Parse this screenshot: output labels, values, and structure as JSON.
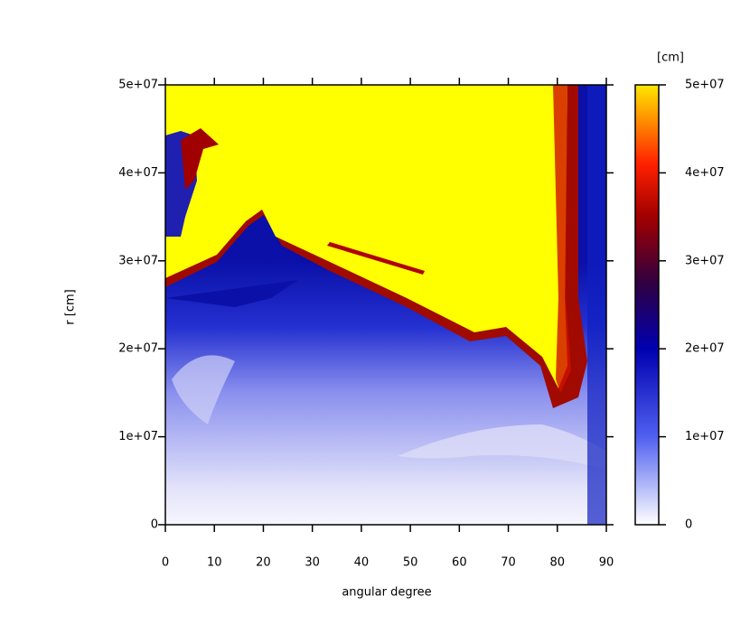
{
  "chart_data": {
    "type": "heatmap",
    "xlabel": "angular degree",
    "ylabel": "r [cm]",
    "xlim": [
      0,
      90
    ],
    "ylim": [
      0,
      50000000
    ],
    "xticks": [
      0,
      10,
      20,
      30,
      40,
      50,
      60,
      70,
      80,
      90
    ],
    "yticks": [
      0,
      {
        "value": 10000000,
        "label": "1e+07"
      },
      {
        "value": 20000000,
        "label": "2e+07"
      },
      {
        "value": 30000000,
        "label": "3e+07"
      },
      {
        "value": 40000000,
        "label": "4e+07"
      },
      {
        "value": 50000000,
        "label": "5e+07"
      }
    ],
    "colorbar": {
      "label": "[cm]",
      "lim": [
        0,
        50000000
      ],
      "ticks": [
        0,
        {
          "value": 10000000,
          "label": "1e+07"
        },
        {
          "value": 20000000,
          "label": "2e+07"
        },
        {
          "value": 30000000,
          "label": "3e+07"
        },
        {
          "value": 40000000,
          "label": "4e+07"
        },
        {
          "value": 50000000,
          "label": "5e+07"
        }
      ]
    }
  }
}
